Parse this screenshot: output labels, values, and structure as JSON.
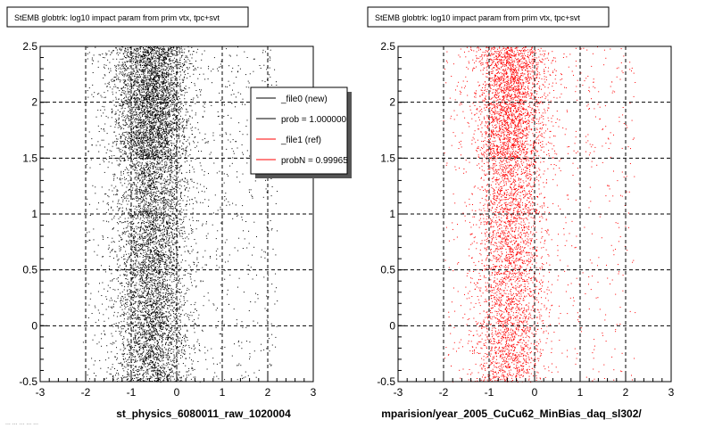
{
  "footer": "... ... ... ... ...",
  "chart_data": [
    {
      "type": "scatter",
      "title": "StEMB globtrk: log10 impact param from prim vtx, tpc+svt",
      "xlabel": "st_physics_6080011_raw_1020004",
      "ylabel": "",
      "xlim": [
        -3,
        3
      ],
      "ylim": [
        -0.5,
        2.5
      ],
      "xticks": [
        "-3",
        "-2",
        "-1",
        "0",
        "1",
        "2",
        "3"
      ],
      "yticks": [
        "-0.5",
        "0",
        "0.5",
        "1",
        "1.5",
        "2",
        "2.5"
      ],
      "grid": true,
      "color": "#000000",
      "points_estimated": 9000,
      "density_description": "dense band x in [-1.0, 0.0], very dense for y in [1.5, 2.5]",
      "legend": {
        "placement": "top-right",
        "entries": [
          {
            "label": "_file0 (new)",
            "color": "#000000"
          },
          {
            "label": "prob = 1.000000",
            "color": "#000000"
          },
          {
            "label": "_file1 (ref)",
            "color": "#ff0000"
          },
          {
            "label": "probN = 0.99965",
            "color": "#ff0000"
          }
        ]
      }
    },
    {
      "type": "scatter",
      "title": "StEMB globtrk: log10 impact param from prim vtx, tpc+svt",
      "xlabel": "mparision/year_2005_CuCu62_MinBias_daq_sl302/",
      "ylabel": "",
      "xlim": [
        -3,
        3
      ],
      "ylim": [
        -0.5,
        2.5
      ],
      "xticks": [
        "-3",
        "-2",
        "-1",
        "0",
        "1",
        "2",
        "3"
      ],
      "yticks": [
        "-0.5",
        "0",
        "0.5",
        "1",
        "1.5",
        "2",
        "2.5"
      ],
      "grid": true,
      "color": "#ff0000",
      "points_estimated": 6000,
      "density_description": "dense band x in [-1.0, 0.0], very dense for y in [1.5, 2.5]"
    }
  ]
}
